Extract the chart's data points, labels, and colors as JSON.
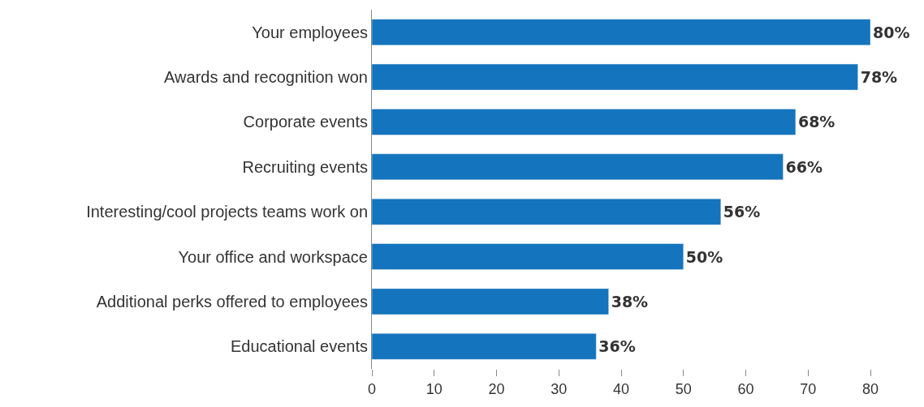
{
  "chart_data": {
    "type": "bar",
    "orientation": "horizontal",
    "categories": [
      "Your employees",
      "Awards and recognition won",
      "Corporate events",
      "Recruiting events",
      "Interesting/cool projects teams work on",
      "Your office and workspace",
      "Additional perks offered to employees",
      "Educational events"
    ],
    "values": [
      80,
      78,
      68,
      66,
      56,
      50,
      38,
      36
    ],
    "value_labels": [
      "80%",
      "78%",
      "68%",
      "66%",
      "56%",
      "50%",
      "38%",
      "36%"
    ],
    "color": "#1474bd",
    "xlim": [
      0,
      80
    ],
    "xticks": [
      0,
      10,
      20,
      30,
      40,
      50,
      60,
      70,
      80
    ],
    "legend": false
  }
}
